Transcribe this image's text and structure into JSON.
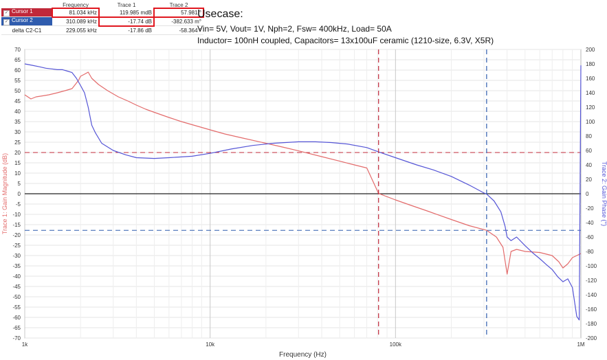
{
  "cursor_table": {
    "headers": [
      "",
      "Frequency",
      "Trace 1",
      "Trace 2"
    ],
    "rows": [
      {
        "name": "Cursor 1",
        "checked": true,
        "color": "#c0283a",
        "frequency": "81.034 kHz",
        "trace1": "119.985 mdB",
        "trace2": "57.981 °"
      },
      {
        "name": "Cursor 2",
        "checked": true,
        "color": "#2f5cae",
        "frequency": "310.089 kHz",
        "trace1": "-17.74 dB",
        "trace2": "-382.633 m°"
      },
      {
        "name": "delta C2-C1",
        "checked": false,
        "color": "",
        "frequency": "229.055 kHz",
        "trace1": "-17.86 dB",
        "trace2": "-58.364 °"
      }
    ]
  },
  "usecase": {
    "title": "Usecase:",
    "line1": "Vin= 5V, Vout= 1V, Nph=2, Fsw= 400kHz, Load= 50A",
    "line2": "Inductor= 100nH coupled, Capacitors= 13x100uF ceramic (1210-size, 6.3V, X5R)"
  },
  "chart_data": {
    "type": "line",
    "xlabel": "Frequency (Hz)",
    "ylabel_left": "Trace 1: Gain Magnitude (dB)",
    "ylabel_right": "Trace 2: Gain Phase (°)",
    "x_scale": "log",
    "xlim": [
      1000,
      1000000
    ],
    "ylim_left": [
      -70,
      70
    ],
    "ylim_right": [
      -200,
      200
    ],
    "x_ticks": [
      {
        "value": 1000,
        "label": "1k"
      },
      {
        "value": 10000,
        "label": "10k"
      },
      {
        "value": 100000,
        "label": "100k"
      },
      {
        "value": 1000000,
        "label": "1M"
      }
    ],
    "y_ticks_left": [
      70,
      65,
      60,
      55,
      50,
      45,
      40,
      35,
      30,
      25,
      20,
      15,
      10,
      5,
      0,
      -5,
      -10,
      -15,
      -20,
      -25,
      -30,
      -35,
      -40,
      -45,
      -50,
      -55,
      -60,
      -65,
      -70
    ],
    "y_ticks_right": [
      200,
      180,
      160,
      140,
      120,
      100,
      80,
      60,
      40,
      20,
      0,
      -20,
      -40,
      -60,
      -80,
      -100,
      -120,
      -140,
      -160,
      -180,
      -200
    ],
    "grid": true,
    "colors": {
      "gain": "#e36b6b",
      "phase": "#5555d6",
      "cursor1": "#c0283a",
      "cursor2": "#2f5cae",
      "zero": "#222222"
    },
    "series": [
      {
        "axis": "left",
        "points": [
          [
            1000,
            48
          ],
          [
            1080,
            46
          ],
          [
            1150,
            47
          ],
          [
            1250,
            47.5
          ],
          [
            1350,
            48
          ],
          [
            1500,
            49
          ],
          [
            1650,
            50
          ],
          [
            1800,
            51
          ],
          [
            1950,
            55
          ],
          [
            2000,
            57
          ],
          [
            2100,
            58
          ],
          [
            2200,
            59
          ],
          [
            2300,
            56
          ],
          [
            2500,
            53
          ],
          [
            2800,
            50
          ],
          [
            3200,
            47
          ],
          [
            3600,
            45
          ],
          [
            4000,
            43
          ],
          [
            4500,
            41
          ],
          [
            5000,
            39.5
          ],
          [
            6000,
            37
          ],
          [
            7000,
            35
          ],
          [
            8000,
            33.5
          ],
          [
            10000,
            31
          ],
          [
            12000,
            29
          ],
          [
            15000,
            27
          ],
          [
            20000,
            24.5
          ],
          [
            25000,
            22.5
          ],
          [
            30000,
            20.8
          ],
          [
            40000,
            18
          ],
          [
            50000,
            15.8
          ],
          [
            60000,
            14
          ],
          [
            70000,
            12.5
          ],
          [
            81034,
            0.12
          ],
          [
            100000,
            -3
          ],
          [
            120000,
            -5.5
          ],
          [
            150000,
            -8.5
          ],
          [
            200000,
            -12.5
          ],
          [
            250000,
            -15.5
          ],
          [
            310089,
            -17.74
          ],
          [
            350000,
            -21
          ],
          [
            380000,
            -26
          ],
          [
            400000,
            -39
          ],
          [
            420000,
            -28
          ],
          [
            450000,
            -27
          ],
          [
            500000,
            -28
          ],
          [
            600000,
            -28.5
          ],
          [
            700000,
            -30
          ],
          [
            760000,
            -33
          ],
          [
            800000,
            -36
          ],
          [
            850000,
            -34
          ],
          [
            900000,
            -31
          ],
          [
            950000,
            -30
          ],
          [
            1000000,
            -29
          ]
        ]
      },
      {
        "axis": "right",
        "points": [
          [
            1000,
            180
          ],
          [
            1100,
            178
          ],
          [
            1200,
            176
          ],
          [
            1300,
            174
          ],
          [
            1400,
            173
          ],
          [
            1500,
            172
          ],
          [
            1600,
            172
          ],
          [
            1700,
            170
          ],
          [
            1800,
            168
          ],
          [
            1900,
            160
          ],
          [
            2000,
            150
          ],
          [
            2100,
            140
          ],
          [
            2200,
            120
          ],
          [
            2300,
            95
          ],
          [
            2400,
            85
          ],
          [
            2600,
            70
          ],
          [
            3000,
            60
          ],
          [
            3500,
            54
          ],
          [
            4000,
            50
          ],
          [
            5000,
            49
          ],
          [
            6000,
            50
          ],
          [
            7000,
            51
          ],
          [
            8000,
            52
          ],
          [
            10000,
            56
          ],
          [
            13000,
            62
          ],
          [
            17000,
            67
          ],
          [
            22000,
            70
          ],
          [
            30000,
            72
          ],
          [
            37000,
            72
          ],
          [
            45000,
            71
          ],
          [
            55000,
            69
          ],
          [
            70000,
            64
          ],
          [
            81034,
            57.98
          ],
          [
            100000,
            50
          ],
          [
            130000,
            40
          ],
          [
            160000,
            33
          ],
          [
            200000,
            24
          ],
          [
            250000,
            12
          ],
          [
            300000,
            1
          ],
          [
            310089,
            -0.38
          ],
          [
            340000,
            -10
          ],
          [
            370000,
            -25
          ],
          [
            390000,
            -45
          ],
          [
            400000,
            -60
          ],
          [
            420000,
            -65
          ],
          [
            450000,
            -60
          ],
          [
            500000,
            -72
          ],
          [
            550000,
            -82
          ],
          [
            600000,
            -90
          ],
          [
            650000,
            -98
          ],
          [
            700000,
            -105
          ],
          [
            750000,
            -115
          ],
          [
            800000,
            -122
          ],
          [
            850000,
            -118
          ],
          [
            900000,
            -130
          ],
          [
            950000,
            -170
          ],
          [
            980000,
            -175
          ],
          [
            1000000,
            178
          ]
        ]
      }
    ],
    "reference_lines": [
      {
        "axis": "left",
        "value": 20,
        "color": "#c0283a",
        "style": "dashed"
      },
      {
        "axis": "left",
        "value": -17.74,
        "color": "#2f5cae",
        "style": "dashed"
      },
      {
        "axis": "left",
        "value": 0,
        "color": "#222222",
        "style": "solid"
      }
    ],
    "cursors": [
      {
        "label": "Cursor 1",
        "x": 81034,
        "color": "#c0283a"
      },
      {
        "label": "Cursor 2",
        "x": 310089,
        "color": "#2f5cae"
      }
    ]
  }
}
